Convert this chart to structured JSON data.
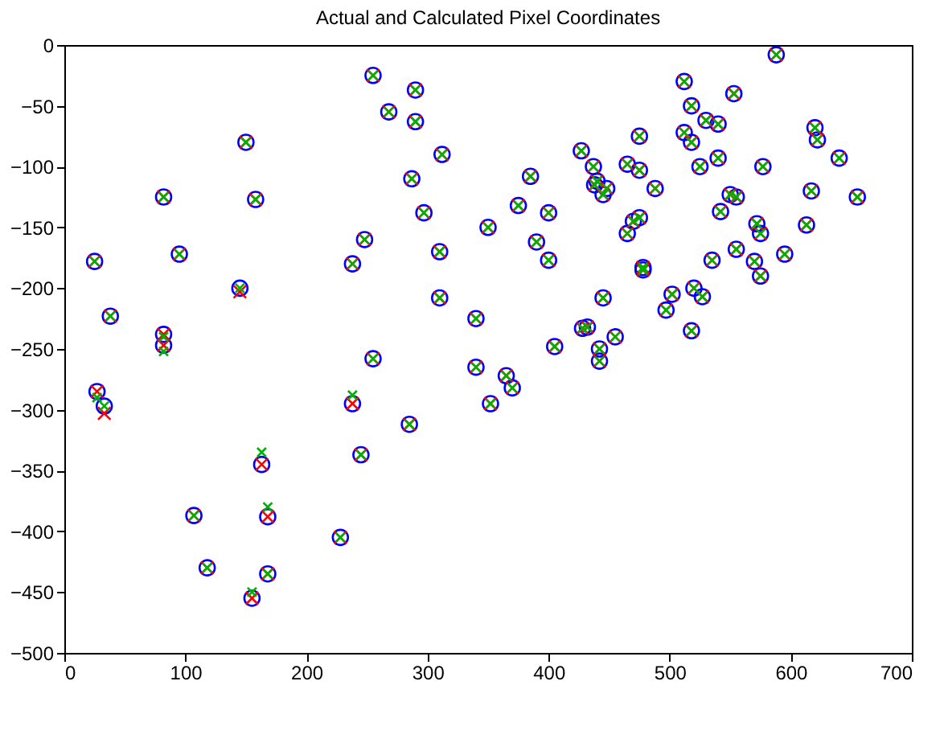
{
  "chart_data": {
    "type": "scatter",
    "title": "Actual and Calculated Pixel Coordinates",
    "x": [
      25,
      38,
      27,
      33,
      82,
      95,
      82,
      82,
      150,
      158,
      145,
      107,
      118,
      155,
      163,
      168,
      168,
      228,
      238,
      245,
      238,
      248,
      255,
      255,
      268,
      290,
      290,
      287,
      297,
      312,
      310,
      310,
      285,
      340,
      340,
      352,
      365,
      370,
      350,
      375,
      385,
      390,
      400,
      400,
      405,
      427,
      428,
      432,
      437,
      440,
      442,
      442,
      445,
      448,
      445,
      455,
      465,
      465,
      470,
      475,
      475,
      475,
      478,
      478,
      488,
      497,
      502,
      512,
      512,
      518,
      518,
      518,
      520,
      525,
      527,
      530,
      535,
      540,
      540,
      542,
      550,
      553,
      555,
      555,
      570,
      572,
      575,
      575,
      577,
      588,
      595,
      613,
      617,
      620,
      622,
      640,
      655,
      438
    ],
    "series": [
      {
        "color": "#0000ff",
        "marker": "circle",
        "values": [
          -178,
          -223,
          -285,
          -297,
          -125,
          -172,
          -238,
          -247,
          -80,
          -127,
          -200,
          -387,
          -430,
          -455,
          -345,
          -388,
          -435,
          -405,
          -295,
          -337,
          -180,
          -160,
          -258,
          -25,
          -55,
          -37,
          -63,
          -110,
          -138,
          -90,
          -170,
          -208,
          -312,
          -225,
          -265,
          -295,
          -272,
          -282,
          -150,
          -132,
          -108,
          -162,
          -138,
          -177,
          -248,
          -87,
          -233,
          -232,
          -100,
          -112,
          -260,
          -250,
          -208,
          -118,
          -123,
          -240,
          -98,
          -155,
          -145,
          -142,
          -75,
          -103,
          -183,
          -185,
          -118,
          -218,
          -205,
          -30,
          -72,
          -50,
          -80,
          -235,
          -200,
          -100,
          -207,
          -62,
          -177,
          -93,
          -65,
          -137,
          -123,
          -40,
          -168,
          -125,
          -178,
          -147,
          -155,
          -190,
          -100,
          -8,
          -172,
          -148,
          -120,
          -68,
          -78,
          -93,
          -125,
          -115
        ]
      },
      {
        "color": "#ff0000",
        "marker": "cross",
        "values": [
          -178,
          -223,
          -285,
          -303,
          -125,
          -172,
          -238,
          -247,
          -80,
          -127,
          -203,
          -387,
          -430,
          -455,
          -345,
          -388,
          -435,
          -405,
          -295,
          -337,
          -180,
          -160,
          -258,
          -25,
          -55,
          -37,
          -63,
          -110,
          -138,
          -90,
          -170,
          -208,
          -312,
          -225,
          -265,
          -295,
          -272,
          -282,
          -150,
          -132,
          -108,
          -162,
          -138,
          -177,
          -248,
          -87,
          -233,
          -232,
          -100,
          -112,
          -260,
          -250,
          -208,
          -118,
          -123,
          -240,
          -98,
          -155,
          -145,
          -142,
          -75,
          -103,
          -183,
          -185,
          -118,
          -218,
          -205,
          -30,
          -72,
          -50,
          -80,
          -235,
          -200,
          -100,
          -207,
          -62,
          -177,
          -93,
          -65,
          -137,
          -123,
          -40,
          -168,
          -125,
          -178,
          -147,
          -155,
          -190,
          -100,
          -8,
          -172,
          -148,
          -120,
          -68,
          -78,
          -93,
          -125,
          -115
        ]
      },
      {
        "color": "#00b000",
        "marker": "cross",
        "values": [
          -178,
          -223,
          -290,
          -297,
          -125,
          -172,
          -240,
          -252,
          -80,
          -127,
          -200,
          -387,
          -430,
          -450,
          -335,
          -380,
          -435,
          -405,
          -288,
          -337,
          -180,
          -160,
          -258,
          -25,
          -55,
          -37,
          -63,
          -110,
          -138,
          -90,
          -170,
          -208,
          -312,
          -225,
          -265,
          -295,
          -272,
          -282,
          -150,
          -132,
          -108,
          -162,
          -138,
          -177,
          -248,
          -87,
          -233,
          -232,
          -100,
          -112,
          -260,
          -250,
          -208,
          -118,
          -123,
          -240,
          -98,
          -155,
          -145,
          -142,
          -75,
          -103,
          -183,
          -185,
          -118,
          -218,
          -205,
          -30,
          -72,
          -50,
          -80,
          -235,
          -200,
          -100,
          -207,
          -62,
          -177,
          -93,
          -65,
          -137,
          -123,
          -40,
          -168,
          -125,
          -178,
          -147,
          -155,
          -190,
          -100,
          -8,
          -172,
          -148,
          -120,
          -68,
          -78,
          -93,
          -125,
          -115
        ]
      }
    ],
    "xlim": [
      0,
      700
    ],
    "xticks": [
      0,
      100,
      200,
      300,
      400,
      500,
      600,
      700
    ],
    "ylim": [
      -500,
      0
    ],
    "yticks": [
      -500,
      -450,
      -400,
      -350,
      -300,
      -250,
      -200,
      -150,
      -100,
      -50,
      0
    ],
    "grid": false
  }
}
